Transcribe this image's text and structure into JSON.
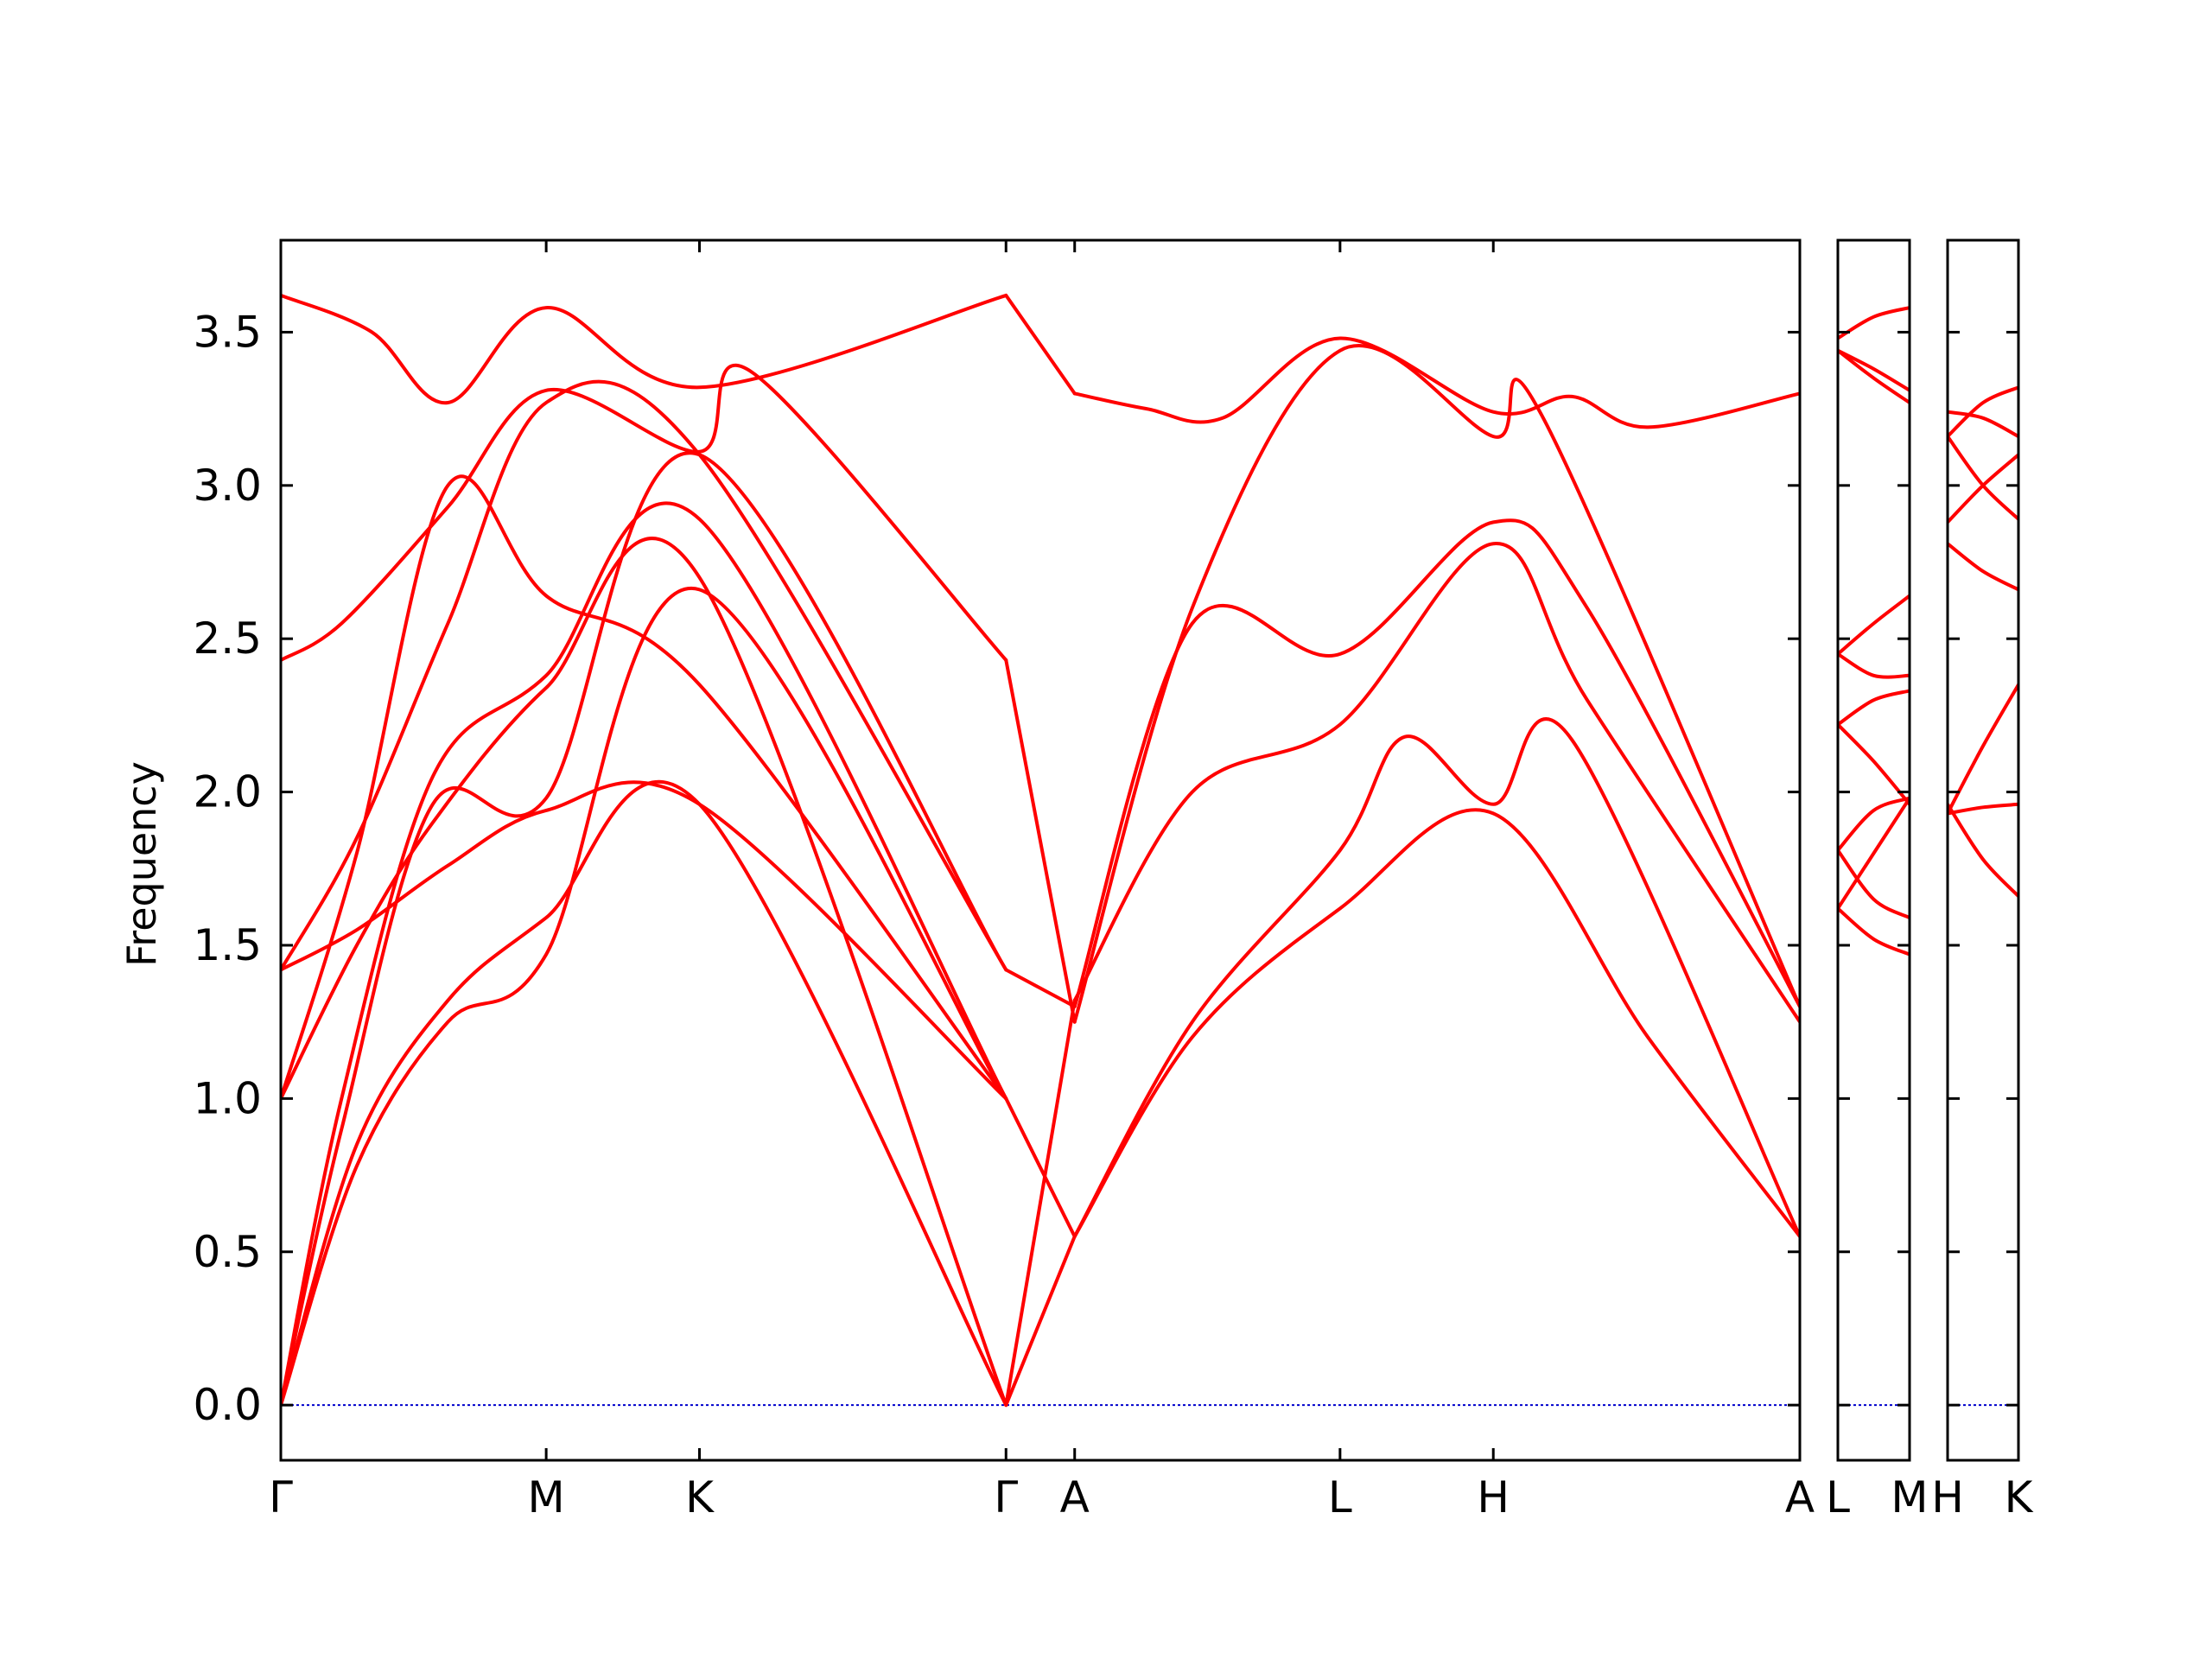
{
  "chart_data": {
    "type": "line",
    "title": "",
    "xlabel": "",
    "ylabel": "Frequency",
    "ylim": [
      -0.18,
      3.8
    ],
    "yticks": [
      "0.0",
      "0.5",
      "1.0",
      "1.5",
      "2.0",
      "2.5",
      "3.0",
      "3.5"
    ],
    "line_color": "#ff0000",
    "zero_line_color": "#0000cc",
    "segments": [
      {
        "from": "Γ",
        "to": "M"
      },
      {
        "from": "M",
        "to": "K"
      },
      {
        "from": "K",
        "to": "Γ"
      },
      {
        "from": "Γ",
        "to": "A"
      },
      {
        "from": "A",
        "to": "L"
      },
      {
        "from": "L",
        "to": "H"
      },
      {
        "from": "H",
        "to": "A"
      },
      {
        "from": "L",
        "to": "M"
      },
      {
        "from": "H",
        "to": "K"
      }
    ],
    "panels": [
      {
        "xticks": [
          {
            "label": "Γ",
            "x": 0
          },
          {
            "label": "M",
            "x": 0.1747
          },
          {
            "label": "K",
            "x": 0.2756
          },
          {
            "label": "Γ",
            "x": 0.4774
          },
          {
            "label": "A",
            "x": 0.5226
          },
          {
            "label": "L",
            "x": 0.6973
          },
          {
            "label": "H",
            "x": 0.7982
          },
          {
            "label": "A",
            "x": 1.0
          }
        ],
        "series": [
          {
            "x": [
              0,
              0.06,
              0.11,
              0.1747,
              0.2756,
              0.4774
            ],
            "y": [
              3.62,
              3.5,
              3.27,
              3.58,
              3.32,
              3.62
            ]
          },
          {
            "x": [
              0,
              0.04,
              0.11,
              0.1747,
              0.2756,
              0.31,
              0.4774
            ],
            "y": [
              2.43,
              2.55,
              2.93,
              3.31,
              3.11,
              3.37,
              2.43
            ]
          },
          {
            "x": [
              0,
              0.05,
              0.11,
              0.1747,
              0.2756,
              0.4774
            ],
            "y": [
              1.42,
              1.85,
              2.55,
              3.27,
              3.1,
              1.42
            ]
          },
          {
            "x": [
              0,
              0.05,
              0.11,
              0.1747,
              0.2756,
              0.4774
            ],
            "y": [
              1.0,
              1.8,
              3.0,
              2.64,
              2.35,
              1.0
            ]
          },
          {
            "x": [
              0,
              0.04,
              0.1,
              0.1747,
              0.2756,
              0.4774
            ],
            "y": [
              0.0,
              1.0,
              2.05,
              2.38,
              2.89,
              1.0
            ]
          },
          {
            "x": [
              0,
              0.05,
              0.1,
              0.1747,
              0.2756,
              0.4774
            ],
            "y": [
              1.0,
              1.5,
              1.9,
              2.34,
              2.7,
              0.0
            ]
          },
          {
            "x": [
              0,
              0.04,
              0.1,
              0.1747,
              0.2756,
              0.4774
            ],
            "y": [
              0.0,
              0.9,
              1.96,
              1.98,
              3.1,
              1.42
            ]
          },
          {
            "x": [
              0,
              0.05,
              0.11,
              0.1747,
              0.2756,
              0.4774
            ],
            "y": [
              1.42,
              1.55,
              1.76,
              1.94,
              1.96,
              1.0
            ]
          },
          {
            "x": [
              0,
              0.05,
              0.11,
              0.1747,
              0.2756,
              0.4774
            ],
            "y": [
              0.0,
              0.85,
              1.32,
              1.59,
              1.96,
              0.0
            ]
          },
          {
            "x": [
              0,
              0.05,
              0.11,
              0.1747,
              0.2756,
              0.4774
            ],
            "y": [
              0.0,
              0.78,
              1.25,
              1.47,
              2.66,
              1.0
            ]
          },
          {
            "x": [
              0.4774,
              0.5226
            ],
            "y": [
              3.62,
              3.3
            ]
          },
          {
            "x": [
              0.4774,
              0.5226
            ],
            "y": [
              2.43,
              1.25
            ]
          },
          {
            "x": [
              0.4774,
              0.5226
            ],
            "y": [
              1.42,
              1.3
            ]
          },
          {
            "x": [
              0.4774,
              0.5226
            ],
            "y": [
              1.0,
              0.55
            ]
          },
          {
            "x": [
              0.4774,
              0.5226
            ],
            "y": [
              0.0,
              1.32
            ]
          },
          {
            "x": [
              0.4774,
              0.5226
            ],
            "y": [
              0.0,
              0.55
            ]
          },
          {
            "x": [
              0.5226,
              0.57,
              0.62,
              0.6973,
              0.7982,
              0.85,
              0.9,
              1.0
            ],
            "y": [
              3.3,
              3.25,
              3.22,
              3.48,
              3.24,
              3.29,
              3.19,
              3.3
            ]
          },
          {
            "x": [
              0.5226,
              0.6,
              0.6973,
              0.7982,
              0.83,
              1.0
            ],
            "y": [
              1.25,
              2.6,
              3.44,
              3.16,
              3.23,
              1.3
            ]
          },
          {
            "x": [
              0.5226,
              0.6,
              0.6973,
              0.7982,
              0.86,
              1.0
            ],
            "y": [
              1.3,
              2.55,
              2.45,
              2.88,
              2.6,
              1.3
            ]
          },
          {
            "x": [
              0.5226,
              0.6,
              0.6973,
              0.7982,
              0.86,
              1.0
            ],
            "y": [
              1.32,
              2.0,
              2.22,
              2.81,
              2.3,
              1.25
            ]
          },
          {
            "x": [
              0.5226,
              0.6,
              0.6973,
              0.74,
              0.7982,
              0.85,
              1.0
            ],
            "y": [
              0.55,
              1.25,
              1.81,
              2.18,
              1.96,
              2.17,
              0.55
            ]
          },
          {
            "x": [
              0.5226,
              0.6,
              0.6973,
              0.7982,
              0.9,
              1.0
            ],
            "y": [
              0.55,
              1.2,
              1.62,
              1.93,
              1.2,
              0.55
            ]
          }
        ]
      },
      {
        "xticks": [
          {
            "label": "L",
            "x": 0
          },
          {
            "label": "M",
            "x": 1
          }
        ],
        "series": [
          {
            "x": [
              0,
              0.5,
              1
            ],
            "y": [
              3.48,
              3.55,
              3.58
            ]
          },
          {
            "x": [
              0,
              0.5,
              1
            ],
            "y": [
              3.44,
              3.38,
              3.31
            ]
          },
          {
            "x": [
              0,
              0.5,
              1
            ],
            "y": [
              3.44,
              3.35,
              3.27
            ]
          },
          {
            "x": [
              0,
              0.5,
              1
            ],
            "y": [
              2.45,
              2.55,
              2.64
            ]
          },
          {
            "x": [
              0,
              0.5,
              1
            ],
            "y": [
              2.45,
              2.38,
              2.38
            ]
          },
          {
            "x": [
              0,
              0.5,
              1
            ],
            "y": [
              2.22,
              2.3,
              2.33
            ]
          },
          {
            "x": [
              0,
              0.5,
              1
            ],
            "y": [
              2.22,
              2.1,
              1.96
            ]
          },
          {
            "x": [
              0,
              0.5,
              1
            ],
            "y": [
              1.81,
              1.94,
              1.98
            ]
          },
          {
            "x": [
              0,
              0.5,
              1
            ],
            "y": [
              1.81,
              1.65,
              1.59
            ]
          },
          {
            "x": [
              0,
              0.5,
              1
            ],
            "y": [
              1.62,
              1.8,
              1.98
            ]
          },
          {
            "x": [
              0,
              0.5,
              1
            ],
            "y": [
              1.62,
              1.52,
              1.47
            ]
          }
        ]
      },
      {
        "xticks": [
          {
            "label": "H",
            "x": 0
          },
          {
            "label": "K",
            "x": 1
          }
        ],
        "series": [
          {
            "x": [
              0,
              0.5,
              1
            ],
            "y": [
              3.24,
              3.22,
              3.16
            ]
          },
          {
            "x": [
              0,
              0.5,
              1
            ],
            "y": [
              3.16,
              3.27,
              3.32
            ]
          },
          {
            "x": [
              0,
              0.5,
              1
            ],
            "y": [
              3.16,
              3.0,
              2.89
            ]
          },
          {
            "x": [
              0,
              0.5,
              1
            ],
            "y": [
              2.88,
              3.0,
              3.1
            ]
          },
          {
            "x": [
              0,
              0.5,
              1
            ],
            "y": [
              2.81,
              2.72,
              2.66
            ]
          },
          {
            "x": [
              0,
              0.5,
              1
            ],
            "y": [
              1.93,
              2.15,
              2.35
            ]
          },
          {
            "x": [
              0,
              0.5,
              1
            ],
            "y": [
              1.93,
              1.95,
              1.96
            ]
          },
          {
            "x": [
              0,
              0.5,
              1
            ],
            "y": [
              1.96,
              1.78,
              1.66
            ]
          }
        ]
      }
    ]
  }
}
